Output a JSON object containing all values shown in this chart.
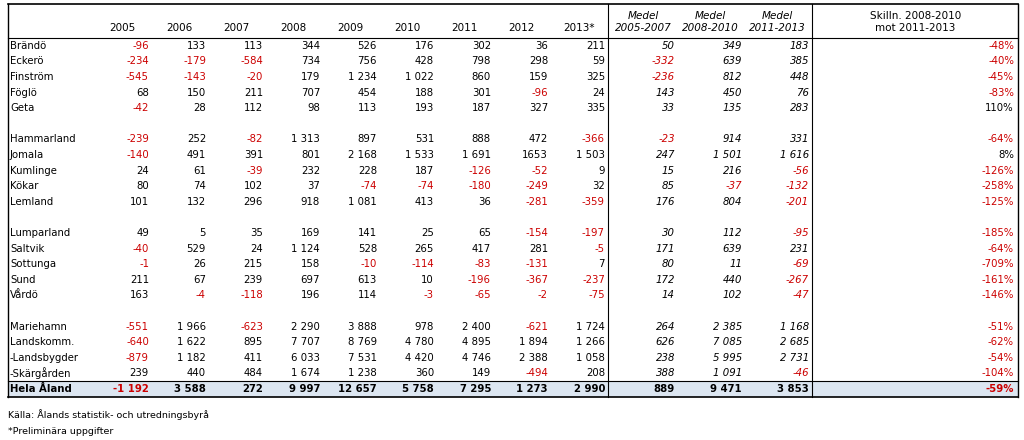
{
  "source": "Källa: Ålands statistik- och utredningsbyrå",
  "footnote": "*Preliminära uppgifter",
  "rows": [
    {
      "name": "Brändö",
      "vals": [
        "-96",
        "133",
        "113",
        "344",
        "526",
        "176",
        "302",
        "36",
        "211"
      ],
      "medels": [
        "50",
        "349",
        "183"
      ],
      "skilln": "-48%",
      "neg": [
        true,
        false,
        false,
        false,
        false,
        false,
        false,
        false,
        false
      ],
      "mneg": [
        false,
        false,
        false
      ],
      "sneg": true
    },
    {
      "name": "Eckerö",
      "vals": [
        "-234",
        "-179",
        "-584",
        "734",
        "756",
        "428",
        "798",
        "298",
        "59"
      ],
      "medels": [
        "-332",
        "639",
        "385"
      ],
      "skilln": "-40%",
      "neg": [
        true,
        true,
        true,
        false,
        false,
        false,
        false,
        false,
        false
      ],
      "mneg": [
        true,
        false,
        false
      ],
      "sneg": true
    },
    {
      "name": "Finström",
      "vals": [
        "-545",
        "-143",
        "-20",
        "179",
        "1 234",
        "1 022",
        "860",
        "159",
        "325"
      ],
      "medels": [
        "-236",
        "812",
        "448"
      ],
      "skilln": "-45%",
      "neg": [
        true,
        true,
        true,
        false,
        false,
        false,
        false,
        false,
        false
      ],
      "mneg": [
        true,
        false,
        false
      ],
      "sneg": true
    },
    {
      "name": "Föglö",
      "vals": [
        "68",
        "150",
        "211",
        "707",
        "454",
        "188",
        "301",
        "-96",
        "24"
      ],
      "medels": [
        "143",
        "450",
        "76"
      ],
      "skilln": "-83%",
      "neg": [
        false,
        false,
        false,
        false,
        false,
        false,
        false,
        true,
        false
      ],
      "mneg": [
        false,
        false,
        false
      ],
      "sneg": true
    },
    {
      "name": "Geta",
      "vals": [
        "-42",
        "28",
        "112",
        "98",
        "113",
        "193",
        "187",
        "327",
        "335"
      ],
      "medels": [
        "33",
        "135",
        "283"
      ],
      "skilln": "110%",
      "neg": [
        true,
        false,
        false,
        false,
        false,
        false,
        false,
        false,
        false
      ],
      "mneg": [
        false,
        false,
        false
      ],
      "sneg": false
    },
    {
      "name": "",
      "vals": [
        "",
        "",
        "",
        "",
        "",
        "",
        "",
        "",
        ""
      ],
      "medels": [
        "",
        "",
        ""
      ],
      "skilln": "",
      "neg": [
        false,
        false,
        false,
        false,
        false,
        false,
        false,
        false,
        false
      ],
      "mneg": [
        false,
        false,
        false
      ],
      "sneg": false
    },
    {
      "name": "Hammarland",
      "vals": [
        "-239",
        "252",
        "-82",
        "1 313",
        "897",
        "531",
        "888",
        "472",
        "-366"
      ],
      "medels": [
        "-23",
        "914",
        "331"
      ],
      "skilln": "-64%",
      "neg": [
        true,
        false,
        true,
        false,
        false,
        false,
        false,
        false,
        true
      ],
      "mneg": [
        true,
        false,
        false
      ],
      "sneg": true
    },
    {
      "name": "Jomala",
      "vals": [
        "-140",
        "491",
        "391",
        "801",
        "2 168",
        "1 533",
        "1 691",
        "1653",
        "1 503"
      ],
      "medels": [
        "247",
        "1 501",
        "1 616"
      ],
      "skilln": "8%",
      "neg": [
        true,
        false,
        false,
        false,
        false,
        false,
        false,
        false,
        false
      ],
      "mneg": [
        false,
        false,
        false
      ],
      "sneg": false
    },
    {
      "name": "Kumlinge",
      "vals": [
        "24",
        "61",
        "-39",
        "232",
        "228",
        "187",
        "-126",
        "-52",
        "9"
      ],
      "medels": [
        "15",
        "216",
        "-56"
      ],
      "skilln": "-126%",
      "neg": [
        false,
        false,
        true,
        false,
        false,
        false,
        true,
        true,
        false
      ],
      "mneg": [
        false,
        false,
        true
      ],
      "sneg": true
    },
    {
      "name": "Kökar",
      "vals": [
        "80",
        "74",
        "102",
        "37",
        "-74",
        "-74",
        "-180",
        "-249",
        "32"
      ],
      "medels": [
        "85",
        "-37",
        "-132"
      ],
      "skilln": "-258%",
      "neg": [
        false,
        false,
        false,
        false,
        true,
        true,
        true,
        true,
        false
      ],
      "mneg": [
        false,
        true,
        true
      ],
      "sneg": true
    },
    {
      "name": "Lemland",
      "vals": [
        "101",
        "132",
        "296",
        "918",
        "1 081",
        "413",
        "36",
        "-281",
        "-359"
      ],
      "medels": [
        "176",
        "804",
        "-201"
      ],
      "skilln": "-125%",
      "neg": [
        false,
        false,
        false,
        false,
        false,
        false,
        false,
        true,
        true
      ],
      "mneg": [
        false,
        false,
        true
      ],
      "sneg": true
    },
    {
      "name": "",
      "vals": [
        "",
        "",
        "",
        "",
        "",
        "",
        "",
        "",
        ""
      ],
      "medels": [
        "",
        "",
        ""
      ],
      "skilln": "",
      "neg": [
        false,
        false,
        false,
        false,
        false,
        false,
        false,
        false,
        false
      ],
      "mneg": [
        false,
        false,
        false
      ],
      "sneg": false
    },
    {
      "name": "Lumparland",
      "vals": [
        "49",
        "5",
        "35",
        "169",
        "141",
        "25",
        "65",
        "-154",
        "-197"
      ],
      "medels": [
        "30",
        "112",
        "-95"
      ],
      "skilln": "-185%",
      "neg": [
        false,
        false,
        false,
        false,
        false,
        false,
        false,
        true,
        true
      ],
      "mneg": [
        false,
        false,
        true
      ],
      "sneg": true
    },
    {
      "name": "Saltvik",
      "vals": [
        "-40",
        "529",
        "24",
        "1 124",
        "528",
        "265",
        "417",
        "281",
        "-5"
      ],
      "medels": [
        "171",
        "639",
        "231"
      ],
      "skilln": "-64%",
      "neg": [
        true,
        false,
        false,
        false,
        false,
        false,
        false,
        false,
        true
      ],
      "mneg": [
        false,
        false,
        false
      ],
      "sneg": true
    },
    {
      "name": "Sottunga",
      "vals": [
        "-1",
        "26",
        "215",
        "158",
        "-10",
        "-114",
        "-83",
        "-131",
        "7"
      ],
      "medels": [
        "80",
        "11",
        "-69"
      ],
      "skilln": "-709%",
      "neg": [
        true,
        false,
        false,
        false,
        true,
        true,
        true,
        true,
        false
      ],
      "mneg": [
        false,
        false,
        true
      ],
      "sneg": true
    },
    {
      "name": "Sund",
      "vals": [
        "211",
        "67",
        "239",
        "697",
        "613",
        "10",
        "-196",
        "-367",
        "-237"
      ],
      "medels": [
        "172",
        "440",
        "-267"
      ],
      "skilln": "-161%",
      "neg": [
        false,
        false,
        false,
        false,
        false,
        false,
        true,
        true,
        true
      ],
      "mneg": [
        false,
        false,
        true
      ],
      "sneg": true
    },
    {
      "name": "Vårdö",
      "vals": [
        "163",
        "-4",
        "-118",
        "196",
        "114",
        "-3",
        "-65",
        "-2",
        "-75"
      ],
      "medels": [
        "14",
        "102",
        "-47"
      ],
      "skilln": "-146%",
      "neg": [
        false,
        true,
        true,
        false,
        false,
        true,
        true,
        true,
        true
      ],
      "mneg": [
        false,
        false,
        true
      ],
      "sneg": true
    },
    {
      "name": "",
      "vals": [
        "",
        "",
        "",
        "",
        "",
        "",
        "",
        "",
        ""
      ],
      "medels": [
        "",
        "",
        ""
      ],
      "skilln": "",
      "neg": [
        false,
        false,
        false,
        false,
        false,
        false,
        false,
        false,
        false
      ],
      "mneg": [
        false,
        false,
        false
      ],
      "sneg": false
    },
    {
      "name": "Mariehamn",
      "vals": [
        "-551",
        "1 966",
        "-623",
        "2 290",
        "3 888",
        "978",
        "2 400",
        "-621",
        "1 724"
      ],
      "medels": [
        "264",
        "2 385",
        "1 168"
      ],
      "skilln": "-51%",
      "neg": [
        true,
        false,
        true,
        false,
        false,
        false,
        false,
        true,
        false
      ],
      "mneg": [
        false,
        false,
        false
      ],
      "sneg": true
    },
    {
      "name": "Landskomm.",
      "vals": [
        "-640",
        "1 622",
        "895",
        "7 707",
        "8 769",
        "4 780",
        "4 895",
        "1 894",
        "1 266"
      ],
      "medels": [
        "626",
        "7 085",
        "2 685"
      ],
      "skilln": "-62%",
      "neg": [
        true,
        false,
        false,
        false,
        false,
        false,
        false,
        false,
        false
      ],
      "mneg": [
        false,
        false,
        false
      ],
      "sneg": true
    },
    {
      "name": "-Landsbygder",
      "vals": [
        "-879",
        "1 182",
        "411",
        "6 033",
        "7 531",
        "4 420",
        "4 746",
        "2 388",
        "1 058"
      ],
      "medels": [
        "238",
        "5 995",
        "2 731"
      ],
      "skilln": "-54%",
      "neg": [
        true,
        false,
        false,
        false,
        false,
        false,
        false,
        false,
        false
      ],
      "mneg": [
        false,
        false,
        false
      ],
      "sneg": true
    },
    {
      "name": "-Skärgården",
      "vals": [
        "239",
        "440",
        "484",
        "1 674",
        "1 238",
        "360",
        "149",
        "-494",
        "208"
      ],
      "medels": [
        "388",
        "1 091",
        "-46"
      ],
      "skilln": "-104%",
      "neg": [
        false,
        false,
        false,
        false,
        false,
        false,
        false,
        true,
        false
      ],
      "mneg": [
        false,
        false,
        true
      ],
      "sneg": true
    },
    {
      "name": "Hela Åland",
      "vals": [
        "-1 192",
        "3 588",
        "272",
        "9 997",
        "12 657",
        "5 758",
        "7 295",
        "1 273",
        "2 990"
      ],
      "medels": [
        "889",
        "9 471",
        "3 853"
      ],
      "skilln": "-59%",
      "neg": [
        true,
        false,
        false,
        false,
        false,
        false,
        false,
        false,
        false
      ],
      "mneg": [
        false,
        false,
        false
      ],
      "sneg": true,
      "bold": true
    }
  ],
  "neg_color": "#cc0000",
  "pos_color": "#000000",
  "total_row_bg": "#dce6f1"
}
